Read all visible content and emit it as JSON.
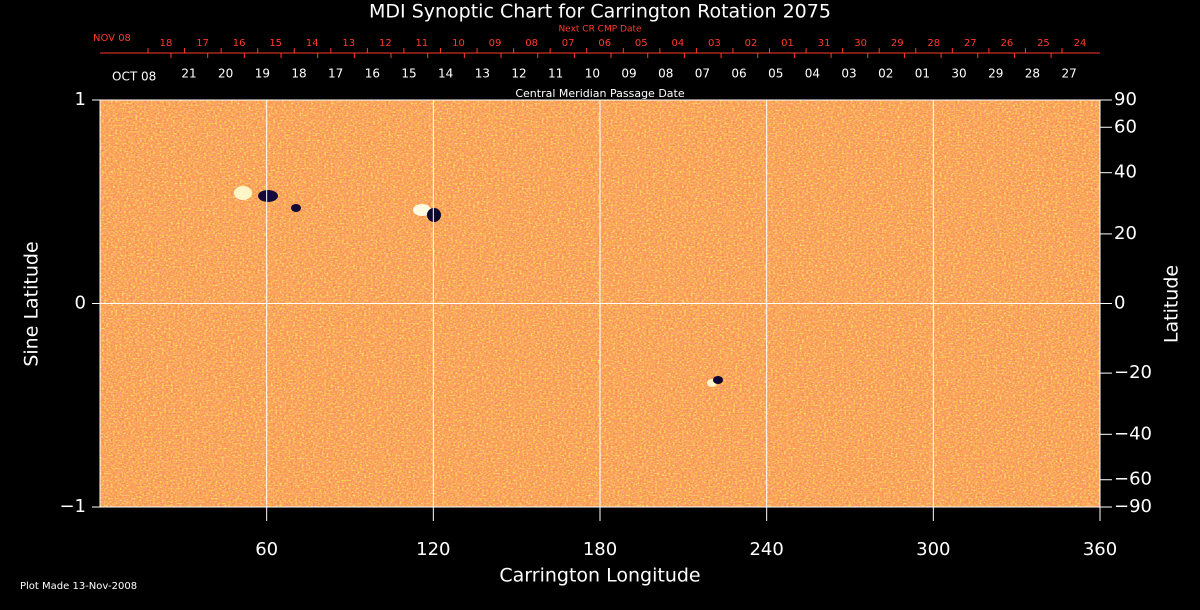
{
  "chart_data": {
    "type": "synoptic-map",
    "title": "MDI Synoptic Chart for Carrington Rotation 2075",
    "xlabel": "Carrington Longitude",
    "ylabel": "Sine Latitude",
    "y2label": "Latitude",
    "xlim": [
      0,
      360
    ],
    "xticks": [
      60,
      120,
      180,
      240,
      300,
      360
    ],
    "ylim": [
      -1,
      1
    ],
    "yticks": [
      {
        "value": -1,
        "label": "−1"
      },
      0,
      1
    ],
    "y2scale": "sine",
    "y2lim": [
      -90,
      90
    ],
    "y2ticks": [
      90,
      60,
      40,
      20,
      0,
      {
        "value": -20,
        "label": "−20"
      },
      {
        "value": -40,
        "label": "−40"
      },
      {
        "value": -60,
        "label": "−60"
      },
      {
        "value": -90,
        "label": "−90"
      }
    ],
    "next_cr_axis": {
      "label": "Next CR CMP Date",
      "start_label": "NOV 08",
      "days": [
        "18",
        "17",
        "16",
        "15",
        "14",
        "13",
        "12",
        "11",
        "10",
        "09",
        "08",
        "07",
        "06",
        "05",
        "04",
        "03",
        "02",
        "01",
        "31",
        "30",
        "29",
        "28",
        "27",
        "26",
        "25",
        "24"
      ],
      "color": "#ff3b2b"
    },
    "cmp_axis": {
      "label": "Central Meridian Passage Date",
      "start_label": "OCT 08",
      "days": [
        "21",
        "20",
        "19",
        "18",
        "17",
        "16",
        "15",
        "14",
        "13",
        "12",
        "11",
        "10",
        "09",
        "08",
        "07",
        "06",
        "05",
        "04",
        "03",
        "02",
        "01",
        "30",
        "29",
        "28",
        "27"
      ]
    },
    "footnote": "Plot Made 13-Nov-2008"
  }
}
